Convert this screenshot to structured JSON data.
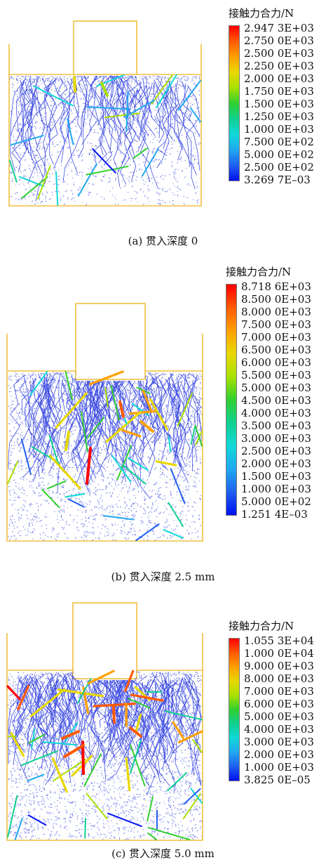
{
  "panels": [
    {
      "caption": "(a) 贯入深度 0",
      "legend": {
        "title": "接触力合力/N",
        "labels": [
          "2.947 3E+03",
          "2.750 0E+03",
          "2.500 0E+03",
          "2.250 0E+03",
          "2.000 0E+03",
          "1.750 0E+03",
          "1.500 0E+03",
          "1.250 0E+03",
          "1.000 0E+03",
          "7.500 0E+02",
          "5.000 0E+02",
          "2.500 0E+02",
          "3.269 7E–03"
        ]
      }
    },
    {
      "caption": "(b) 贯入深度 2.5 mm",
      "legend": {
        "title": "接触力合力/N",
        "labels": [
          "8.718 6E+03",
          "8.500 0E+03",
          "8.000 0E+03",
          "7.500 0E+03",
          "7.000 0E+03",
          "6.500 0E+03",
          "6.000 0E+03",
          "5.500 0E+03",
          "5.000 0E+03",
          "4.500 0E+03",
          "4.000 0E+03",
          "3.500 0E+03",
          "3.000 0E+03",
          "2.500 0E+03",
          "2.000 0E+03",
          "1.500 0E+03",
          "1.000 0E+03",
          "5.000 0E+02",
          "1.251 4E–03"
        ]
      }
    },
    {
      "caption": "(c) 贯入深度 5.0 mm",
      "legend": {
        "title": "接触力合力/N",
        "labels": [
          "1.055 3E+04",
          "1.000 0E+04",
          "9.000 0E+03",
          "8.000 0E+03",
          "7.000 0E+03",
          "6.000 0E+03",
          "5.000 0E+03",
          "4.000 0E+03",
          "3.000 0E+03",
          "2.000 0E+03",
          "1.000 0E+03",
          "3.825 0E–05"
        ]
      }
    }
  ],
  "colors": {
    "frame": "#f0c040",
    "network": "#2233dd",
    "scale": [
      "#ff0000",
      "#ff5a00",
      "#ffa000",
      "#e8d800",
      "#a8e000",
      "#30d030",
      "#10d090",
      "#10d8d8",
      "#20a8f0",
      "#2060f0",
      "#0010f0"
    ]
  }
}
